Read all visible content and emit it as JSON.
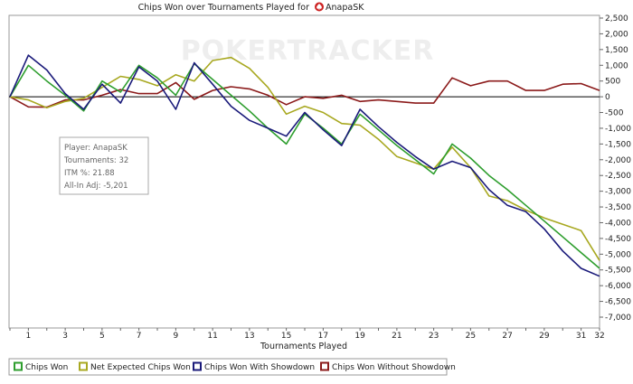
{
  "chart_data": {
    "type": "line",
    "title": "Chips Won over Tournaments Played for",
    "player_name": "AnapaSK",
    "watermark": "POKERTRACKER",
    "xlabel": "Tournaments Played",
    "ylabel": "",
    "xlim": [
      0,
      32
    ],
    "ylim": [
      -7000,
      2500
    ],
    "x_ticks": [
      1,
      3,
      5,
      7,
      9,
      11,
      13,
      15,
      17,
      19,
      21,
      23,
      25,
      27,
      29,
      31,
      32
    ],
    "y_ticks": [
      2500,
      2000,
      1500,
      1000,
      500,
      0,
      -500,
      -1000,
      -1500,
      -2000,
      -2500,
      -3000,
      -3500,
      -4000,
      -4500,
      -5000,
      -5500,
      -6000,
      -6500,
      -7000
    ],
    "y_tick_labels": [
      "2,500",
      "2,000",
      "1,500",
      "1,000",
      "500",
      "0",
      "-500",
      "-1,000",
      "-1,500",
      "-2,000",
      "-2,500",
      "-3,000",
      "-3,500",
      "-4,000",
      "-4,500",
      "-5,000",
      "-5,500",
      "-6,000",
      "-6,500",
      "-7,000"
    ],
    "x": [
      0,
      1,
      2,
      3,
      4,
      5,
      6,
      7,
      8,
      9,
      10,
      11,
      12,
      13,
      14,
      15,
      16,
      17,
      18,
      19,
      20,
      21,
      22,
      23,
      24,
      25,
      26,
      27,
      28,
      29,
      30,
      31,
      32
    ],
    "series": [
      {
        "name": "Chips Won",
        "color": "#2e9e2e",
        "values": [
          0,
          1000,
          500,
          50,
          -450,
          500,
          150,
          1000,
          600,
          50,
          1050,
          550,
          50,
          -450,
          -1000,
          -1500,
          -550,
          -1000,
          -1500,
          -550,
          -1050,
          -1550,
          -2000,
          -2450,
          -1500,
          -1950,
          -2500,
          -2950,
          -3450,
          -3950,
          -4450,
          -4950,
          -5450
        ]
      },
      {
        "name": "Net Expected Chips Won",
        "color": "#a8a820",
        "values": [
          0,
          -100,
          -350,
          -150,
          -50,
          300,
          650,
          550,
          350,
          700,
          500,
          1150,
          1250,
          900,
          300,
          -550,
          -300,
          -500,
          -850,
          -900,
          -1350,
          -1900,
          -2100,
          -2300,
          -1600,
          -2250,
          -3150,
          -3300,
          -3600,
          -3850,
          -4050,
          -4250,
          -5200
        ]
      },
      {
        "name": "Chips Won With Showdown",
        "color": "#1a1a7a",
        "values": [
          0,
          1320,
          850,
          100,
          -400,
          400,
          -200,
          950,
          500,
          -400,
          1080,
          400,
          -300,
          -750,
          -1000,
          -1250,
          -500,
          -1050,
          -1550,
          -400,
          -950,
          -1450,
          -1900,
          -2300,
          -2050,
          -2250,
          -2950,
          -3450,
          -3650,
          -4200,
          -4900,
          -5450,
          -5700
        ]
      },
      {
        "name": "Chips Won Without Showdown",
        "color": "#8b1a1a",
        "values": [
          0,
          -320,
          -330,
          -100,
          -100,
          50,
          230,
          100,
          100,
          450,
          -80,
          200,
          320,
          250,
          50,
          -250,
          0,
          -50,
          50,
          -150,
          -100,
          -150,
          -200,
          -200,
          600,
          350,
          500,
          500,
          200,
          200,
          400,
          420,
          200
        ]
      }
    ],
    "legend_position": "bottom",
    "grid": false,
    "info_box": {
      "player_line": "Player: AnapaSK",
      "tournaments_line": "Tournaments: 32",
      "itm_line": "ITM %: 21.88",
      "allin_line": "All-In Adj: -5,201"
    }
  }
}
